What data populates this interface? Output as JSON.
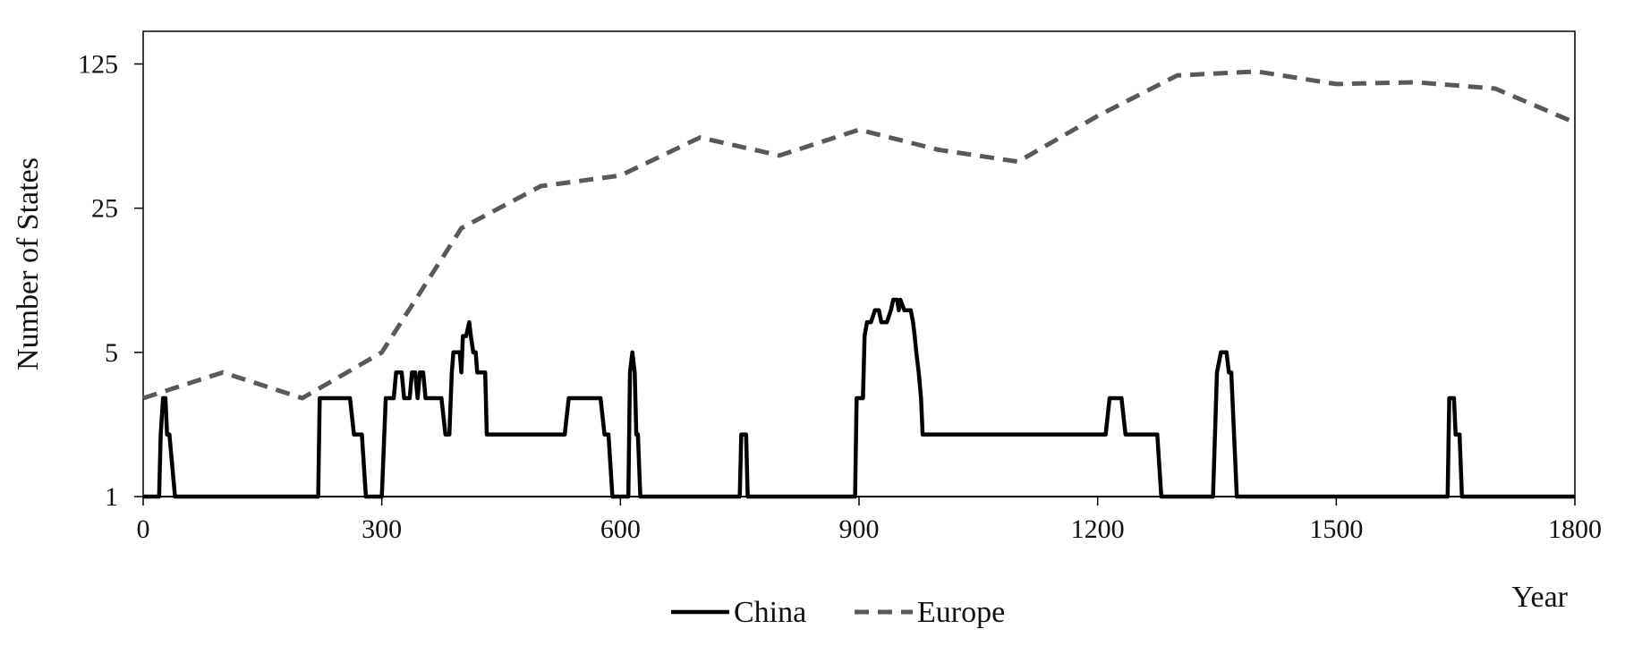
{
  "chart_data": {
    "type": "line",
    "title": "",
    "xlabel": "Year",
    "ylabel": "Number of States",
    "xlim": [
      0,
      1800
    ],
    "ylim": [
      1,
      180
    ],
    "yscale": "log",
    "x_ticks": [
      0,
      300,
      600,
      900,
      1200,
      1500,
      1800
    ],
    "x_tick_labels": [
      "0",
      "300",
      "600",
      "900",
      "1200",
      "1500",
      "1800"
    ],
    "y_ticks": [
      1,
      5,
      25,
      125
    ],
    "y_tick_labels": [
      "1",
      "5",
      "25",
      "125"
    ],
    "grid": false,
    "legend": "bottom-center",
    "series": [
      {
        "name": "China",
        "style": "solid",
        "color": "#000000",
        "points": [
          [
            0,
            1
          ],
          [
            20,
            1
          ],
          [
            22,
            2
          ],
          [
            25,
            3
          ],
          [
            28,
            3
          ],
          [
            30,
            2
          ],
          [
            33,
            2
          ],
          [
            40,
            1
          ],
          [
            220,
            1
          ],
          [
            222,
            3
          ],
          [
            260,
            3
          ],
          [
            265,
            2
          ],
          [
            275,
            2
          ],
          [
            280,
            1
          ],
          [
            300,
            1
          ],
          [
            305,
            3
          ],
          [
            315,
            3
          ],
          [
            318,
            4
          ],
          [
            325,
            4
          ],
          [
            328,
            3
          ],
          [
            335,
            3
          ],
          [
            338,
            4
          ],
          [
            342,
            4
          ],
          [
            345,
            3
          ],
          [
            348,
            4
          ],
          [
            352,
            4
          ],
          [
            355,
            3
          ],
          [
            375,
            3
          ],
          [
            380,
            2
          ],
          [
            385,
            2
          ],
          [
            388,
            4
          ],
          [
            390,
            5
          ],
          [
            398,
            5
          ],
          [
            400,
            4
          ],
          [
            402,
            6
          ],
          [
            406,
            6
          ],
          [
            410,
            7
          ],
          [
            412,
            6
          ],
          [
            415,
            5
          ],
          [
            418,
            5
          ],
          [
            420,
            4
          ],
          [
            430,
            4
          ],
          [
            432,
            2
          ],
          [
            530,
            2
          ],
          [
            535,
            3
          ],
          [
            575,
            3
          ],
          [
            580,
            2
          ],
          [
            585,
            2
          ],
          [
            590,
            1
          ],
          [
            610,
            1
          ],
          [
            612,
            4
          ],
          [
            615,
            5
          ],
          [
            618,
            4
          ],
          [
            620,
            2
          ],
          [
            622,
            2
          ],
          [
            625,
            1
          ],
          [
            750,
            1
          ],
          [
            752,
            2
          ],
          [
            758,
            2
          ],
          [
            760,
            1
          ],
          [
            895,
            1
          ],
          [
            897,
            3
          ],
          [
            905,
            3
          ],
          [
            907,
            6
          ],
          [
            910,
            7
          ],
          [
            915,
            7
          ],
          [
            920,
            8
          ],
          [
            925,
            8
          ],
          [
            928,
            7
          ],
          [
            935,
            7
          ],
          [
            940,
            8
          ],
          [
            943,
            9
          ],
          [
            948,
            9
          ],
          [
            950,
            8
          ],
          [
            952,
            9
          ],
          [
            957,
            8
          ],
          [
            965,
            8
          ],
          [
            968,
            7
          ],
          [
            970,
            6
          ],
          [
            972,
            5
          ],
          [
            975,
            4
          ],
          [
            978,
            3
          ],
          [
            980,
            2
          ],
          [
            1210,
            2
          ],
          [
            1215,
            3
          ],
          [
            1230,
            3
          ],
          [
            1235,
            2
          ],
          [
            1275,
            2
          ],
          [
            1280,
            1
          ],
          [
            1345,
            1
          ],
          [
            1350,
            4
          ],
          [
            1355,
            5
          ],
          [
            1362,
            5
          ],
          [
            1365,
            4
          ],
          [
            1368,
            4
          ],
          [
            1375,
            1
          ],
          [
            1640,
            1
          ],
          [
            1642,
            3
          ],
          [
            1648,
            3
          ],
          [
            1650,
            2
          ],
          [
            1655,
            2
          ],
          [
            1658,
            1
          ],
          [
            1800,
            1
          ]
        ]
      },
      {
        "name": "Europe",
        "style": "dashed",
        "color": "#595959",
        "points": [
          [
            0,
            3
          ],
          [
            100,
            4
          ],
          [
            200,
            3
          ],
          [
            300,
            5
          ],
          [
            400,
            20
          ],
          [
            500,
            32
          ],
          [
            600,
            36
          ],
          [
            700,
            55
          ],
          [
            800,
            45
          ],
          [
            900,
            60
          ],
          [
            1000,
            48
          ],
          [
            1100,
            42
          ],
          [
            1200,
            70
          ],
          [
            1300,
            110
          ],
          [
            1400,
            115
          ],
          [
            1500,
            100
          ],
          [
            1600,
            102
          ],
          [
            1700,
            95
          ],
          [
            1800,
            65
          ]
        ]
      }
    ]
  }
}
